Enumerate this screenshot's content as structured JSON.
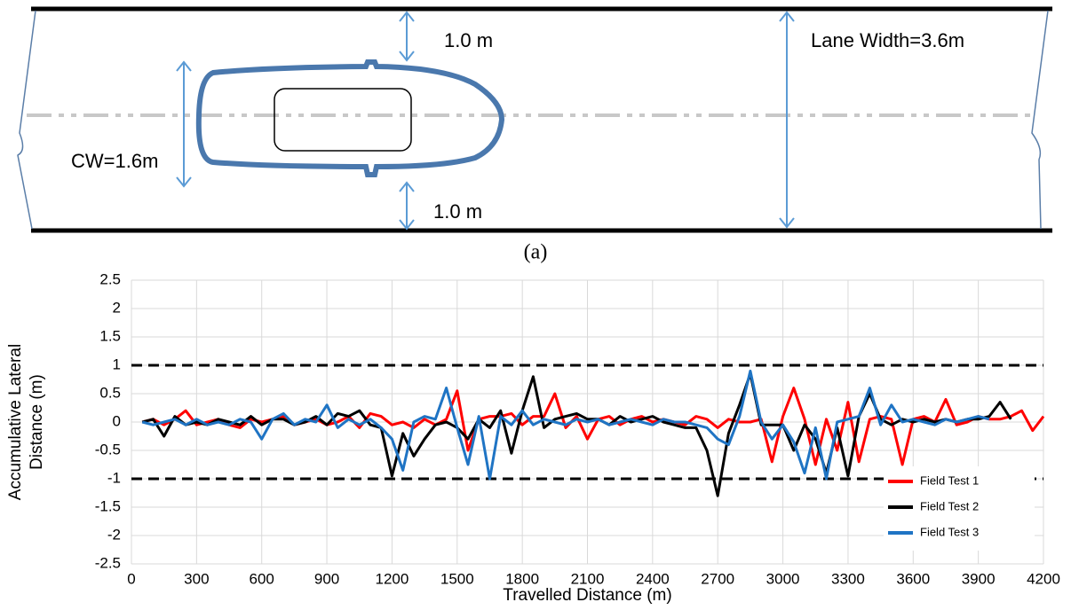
{
  "diagram": {
    "top_gap": "1.0 m",
    "bottom_gap": "1.0 m",
    "lane_width": "Lane Width=3.6m",
    "car_width": "CW=1.6m",
    "caption": "(a)"
  },
  "chart_data": {
    "type": "line",
    "xlabel": "Travelled Distance (m)",
    "ylabel": [
      "Accumulative Lateral",
      "Distance (m)"
    ],
    "xlim": [
      0,
      4200
    ],
    "xticks": [
      0,
      300,
      600,
      900,
      1200,
      1500,
      1800,
      2100,
      2400,
      2700,
      3000,
      3300,
      3600,
      3900,
      4200
    ],
    "ylim": [
      -2.5,
      2.5
    ],
    "yticks": [
      2.5,
      2,
      1.5,
      1,
      0.5,
      0,
      -0.5,
      -1,
      -1.5,
      -2,
      -2.5
    ],
    "grid": true,
    "legend": "lower right",
    "reference_lines": [
      1,
      -1
    ],
    "x": [
      50,
      100,
      150,
      200,
      250,
      300,
      350,
      400,
      450,
      500,
      550,
      600,
      650,
      700,
      750,
      800,
      850,
      900,
      950,
      1000,
      1050,
      1100,
      1150,
      1200,
      1250,
      1300,
      1350,
      1400,
      1450,
      1500,
      1550,
      1600,
      1650,
      1700,
      1750,
      1800,
      1850,
      1900,
      1950,
      2000,
      2050,
      2100,
      2150,
      2200,
      2250,
      2300,
      2350,
      2400,
      2450,
      2500,
      2550,
      2600,
      2650,
      2700,
      2750,
      2800,
      2850,
      2900,
      2950,
      3000,
      3050,
      3100,
      3150,
      3200,
      3250,
      3300,
      3350,
      3400,
      3450,
      3500,
      3550,
      3600,
      3650,
      3700,
      3750,
      3800,
      3850,
      3900,
      3950,
      4000,
      4050,
      4100,
      4150,
      4200
    ],
    "series": [
      {
        "name": "Field Test 1",
        "color": "#ff0000",
        "values": [
          0,
          0.05,
          -0.05,
          0.05,
          0.2,
          -0.05,
          0,
          0.05,
          -0.05,
          -0.1,
          0.05,
          0,
          0.05,
          0.1,
          -0.05,
          0,
          0.05,
          -0.05,
          0,
          0.1,
          -0.1,
          0.15,
          0.1,
          -0.05,
          0,
          -0.1,
          0.05,
          -0.05,
          0.05,
          0.55,
          -0.5,
          0.05,
          0.1,
          0.1,
          0.15,
          -0.05,
          0.1,
          0.1,
          0.5,
          -0.1,
          0.1,
          -0.3,
          0.05,
          0.1,
          -0.05,
          0.05,
          0.1,
          0,
          0.05,
          0,
          -0.05,
          0.1,
          0.05,
          -0.1,
          0.05,
          0,
          0,
          0.05,
          -0.7,
          0.1,
          0.6,
          0.05,
          -0.75,
          0.05,
          -0.5,
          0.35,
          -0.7,
          0.05,
          0.1,
          0.05,
          -0.75,
          0.05,
          0.1,
          0,
          0.4,
          -0.05,
          0,
          0.1,
          0.05,
          0.05,
          0.1,
          0.2,
          -0.15,
          0.1
        ]
      },
      {
        "name": "Field Test 2",
        "color": "#000000",
        "values": [
          0,
          0.05,
          -0.25,
          0.1,
          -0.05,
          0,
          -0.05,
          0.05,
          0,
          -0.05,
          0.1,
          -0.05,
          0.05,
          0.05,
          -0.05,
          0,
          0.1,
          -0.05,
          0.15,
          0.1,
          0.2,
          -0.05,
          -0.1,
          -0.95,
          -0.2,
          -0.6,
          -0.3,
          -0.05,
          0,
          -0.1,
          -0.3,
          0.05,
          -0.1,
          0.2,
          -0.55,
          0.2,
          0.8,
          -0.1,
          0.05,
          0.1,
          0.15,
          0.05,
          0.05,
          -0.05,
          0.1,
          0,
          0.05,
          0.1,
          0,
          -0.05,
          -0.1,
          -0.1,
          -0.5,
          -1.3,
          -0.2,
          0.3,
          0.85,
          -0.05,
          -0.05,
          -0.05,
          -0.5,
          -0.05,
          -0.3,
          -0.9,
          -0.1,
          -0.95,
          0.1,
          0.5,
          0.05,
          -0.05,
          0.05,
          0,
          0.05,
          0,
          0.05,
          0,
          0.05,
          0.05,
          0.1,
          0.35,
          0.05,
          null,
          null,
          null
        ]
      },
      {
        "name": "Field Test 3",
        "color": "#1f74c4",
        "values": [
          0,
          -0.05,
          0,
          0.05,
          -0.05,
          0.05,
          -0.05,
          0,
          -0.05,
          0.05,
          0,
          -0.3,
          0.05,
          0.15,
          -0.05,
          0.05,
          0,
          0.3,
          -0.1,
          0.05,
          -0.05,
          0.05,
          -0.1,
          -0.3,
          -0.85,
          0,
          0.1,
          0.05,
          0.6,
          -0.1,
          -0.75,
          0.1,
          -1.0,
          0.1,
          -0.05,
          0.2,
          -0.05,
          0.05,
          0,
          -0.05,
          0.05,
          0,
          0.05,
          -0.05,
          0,
          0.05,
          0,
          -0.05,
          0.05,
          0,
          0,
          -0.05,
          -0.1,
          -0.3,
          -0.4,
          0.1,
          0.9,
          0,
          -0.3,
          -0.05,
          -0.35,
          -0.9,
          -0.1,
          -1.0,
          0,
          0.05,
          0.1,
          0.6,
          -0.05,
          0.3,
          0,
          0.05,
          0,
          -0.05,
          0.05,
          0,
          0.05,
          0.1,
          0.05,
          null,
          null,
          null,
          null,
          null
        ]
      }
    ]
  }
}
